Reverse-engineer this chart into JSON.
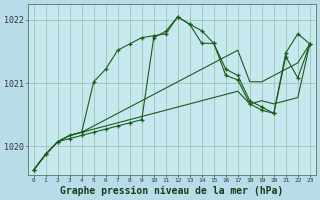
{
  "background_color": "#b8dde8",
  "plot_bg_color": "#c8e8f0",
  "grid_color": "#99bbaa",
  "line_color": "#1a5c1a",
  "marker_color": "#1a5c1a",
  "xlabel": "Graphe pression niveau de la mer (hPa)",
  "xlabel_fontsize": 7,
  "xlim": [
    -0.5,
    23.5
  ],
  "ylim": [
    1019.55,
    1022.25
  ],
  "yticks": [
    1020,
    1021,
    1022
  ],
  "xticks": [
    0,
    1,
    2,
    3,
    4,
    5,
    6,
    7,
    8,
    9,
    10,
    11,
    12,
    13,
    14,
    15,
    16,
    17,
    18,
    19,
    20,
    21,
    22,
    23
  ],
  "series_with_markers": [
    [
      1019.62,
      1019.87,
      1020.07,
      1020.12,
      1020.17,
      1020.22,
      1020.27,
      1020.32,
      1020.37,
      1020.42,
      1021.72,
      1021.82,
      1022.05,
      1021.93,
      1021.63,
      1021.63,
      1021.12,
      1021.05,
      1020.67,
      1020.57,
      1020.52,
      1021.42,
      1021.08,
      1021.62
    ],
    [
      1019.62,
      1019.87,
      1020.07,
      1020.17,
      1020.22,
      1021.02,
      1021.22,
      1021.52,
      1021.62,
      1021.72,
      1021.75,
      1021.78,
      1022.05,
      1021.93,
      1021.83,
      1021.63,
      1021.22,
      1021.12,
      1020.72,
      1020.62,
      1020.52,
      1021.48,
      1021.78,
      1021.62
    ]
  ],
  "series_no_markers": [
    [
      1019.62,
      1019.87,
      1020.07,
      1020.17,
      1020.22,
      1020.32,
      1020.42,
      1020.52,
      1020.62,
      1020.72,
      1020.82,
      1020.92,
      1021.02,
      1021.12,
      1021.22,
      1021.32,
      1021.42,
      1021.52,
      1021.02,
      1021.02,
      1021.12,
      1021.22,
      1021.32,
      1021.62
    ],
    [
      1019.62,
      1019.87,
      1020.07,
      1020.17,
      1020.22,
      1020.27,
      1020.32,
      1020.37,
      1020.42,
      1020.47,
      1020.52,
      1020.57,
      1020.62,
      1020.67,
      1020.72,
      1020.77,
      1020.82,
      1020.87,
      1020.67,
      1020.72,
      1020.67,
      1020.72,
      1020.77,
      1021.62
    ]
  ]
}
